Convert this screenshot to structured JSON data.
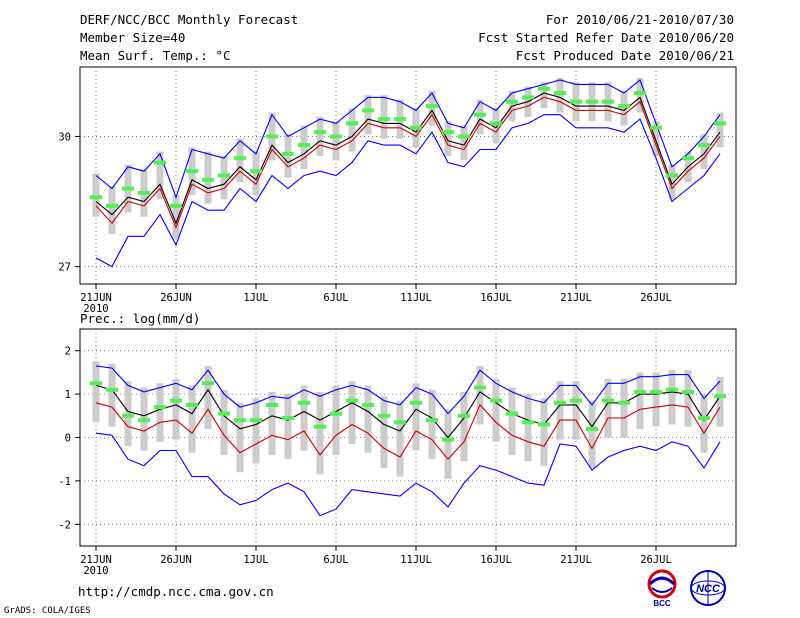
{
  "header": {
    "title": "DERF/NCC/BCC Monthly Forecast",
    "member": "Member Size=40",
    "variable": "Mean Surf. Temp.: °C",
    "period": "For 2010/06/21-2010/07/30",
    "refer": "Fcst Started Refer Date 2010/06/20",
    "produced": "Fcst Produced Date 2010/06/21"
  },
  "footer": {
    "url": "http://cmdp.ncc.cma.gov.cn",
    "grads": "GrADS: COLA/IGES",
    "logo1": "BCC",
    "logo2": "NCC"
  },
  "colors": {
    "mean": "#000000",
    "max": "#0000ff",
    "min": "#cc0000",
    "obs": "#55ee55",
    "spread": "#cccccc"
  },
  "chart_data": [
    {
      "type": "line",
      "title": "Mean Surf. Temp.: °C",
      "xlabel": "",
      "ylabel": "°C",
      "ylim": [
        26.6,
        31.6
      ],
      "yticks": [
        27,
        30
      ],
      "x_ticks": [
        "21JUN",
        "26JUN",
        "1JUL",
        "6JUL",
        "11JUL",
        "16JUL",
        "21JUL",
        "26JUL"
      ],
      "year_label": "2010",
      "days": 40,
      "series": [
        {
          "name": "mean",
          "values": [
            28.5,
            28.2,
            28.6,
            28.5,
            28.9,
            28.0,
            29.0,
            28.8,
            28.9,
            29.3,
            29.0,
            29.8,
            29.4,
            29.6,
            29.9,
            29.8,
            30.0,
            30.4,
            30.3,
            30.3,
            30.1,
            30.6,
            29.9,
            29.8,
            30.4,
            30.2,
            30.7,
            30.8,
            31.0,
            30.9,
            30.7,
            30.7,
            30.7,
            30.6,
            30.9,
            29.9,
            28.9,
            29.3,
            29.6,
            30.1
          ]
        },
        {
          "name": "max",
          "values": [
            29.1,
            28.8,
            29.3,
            29.2,
            29.6,
            28.6,
            29.7,
            29.6,
            29.5,
            29.9,
            29.6,
            30.5,
            30.0,
            30.2,
            30.4,
            30.3,
            30.6,
            30.9,
            30.9,
            30.8,
            30.6,
            31.0,
            30.3,
            30.2,
            30.8,
            30.6,
            31.0,
            31.1,
            31.2,
            31.3,
            31.2,
            31.2,
            31.2,
            31.0,
            31.3,
            30.3,
            29.3,
            29.6,
            30.0,
            30.5
          ]
        },
        {
          "name": "min",
          "values": [
            28.4,
            28.0,
            28.5,
            28.4,
            28.8,
            27.9,
            28.9,
            28.7,
            28.8,
            29.2,
            28.9,
            29.7,
            29.3,
            29.5,
            29.8,
            29.7,
            29.9,
            30.3,
            30.2,
            30.2,
            30.0,
            30.5,
            29.8,
            29.7,
            30.3,
            30.1,
            30.6,
            30.7,
            30.9,
            30.8,
            30.6,
            30.6,
            30.6,
            30.5,
            30.8,
            29.8,
            28.8,
            29.2,
            29.5,
            30.0
          ]
        },
        {
          "name": "lower",
          "values": [
            27.2,
            27.0,
            27.7,
            27.7,
            28.2,
            27.5,
            28.5,
            28.3,
            28.3,
            28.8,
            28.5,
            29.1,
            28.8,
            29.1,
            29.2,
            29.1,
            29.4,
            29.9,
            29.8,
            29.8,
            29.6,
            30.1,
            29.4,
            29.3,
            29.7,
            29.7,
            30.2,
            30.3,
            30.5,
            30.5,
            30.2,
            30.2,
            30.2,
            30.1,
            30.4,
            29.5,
            28.5,
            28.8,
            29.1,
            29.6
          ]
        },
        {
          "name": "obs",
          "values": [
            28.6,
            28.4,
            28.8,
            28.7,
            29.4,
            28.4,
            29.2,
            29.0,
            29.1,
            29.5,
            29.2,
            30.0,
            29.6,
            29.8,
            30.1,
            30.0,
            30.3,
            30.6,
            30.4,
            30.4,
            30.2,
            30.7,
            30.1,
            30.0,
            30.5,
            30.3,
            30.8,
            30.9,
            31.1,
            31.0,
            30.8,
            30.8,
            30.8,
            30.7,
            31.0,
            30.2,
            29.1,
            29.5,
            29.8,
            30.3
          ]
        }
      ]
    },
    {
      "type": "line",
      "title": "Prec.: log(mm/d)",
      "xlabel": "",
      "ylabel": "log(mm/d)",
      "ylim": [
        -2.5,
        2.5
      ],
      "yticks": [
        -2,
        -1,
        0,
        1,
        2
      ],
      "x_ticks": [
        "21JUN",
        "26JUN",
        "1JUL",
        "6JUL",
        "11JUL",
        "16JUL",
        "21JUL",
        "26JUL"
      ],
      "year_label": "2010",
      "days": 40,
      "series": [
        {
          "name": "mean",
          "values": [
            1.2,
            1.1,
            0.6,
            0.5,
            0.65,
            0.75,
            0.55,
            1.1,
            0.5,
            0.2,
            0.3,
            0.5,
            0.4,
            0.6,
            0.4,
            0.6,
            0.8,
            0.6,
            0.3,
            0.15,
            0.65,
            0.45,
            0.0,
            0.45,
            1.05,
            0.8,
            0.55,
            0.4,
            0.3,
            0.75,
            0.75,
            0.25,
            0.8,
            0.8,
            1.0,
            1.0,
            1.05,
            1.0,
            0.4,
            0.95
          ]
        },
        {
          "name": "max",
          "values": [
            1.65,
            1.6,
            1.2,
            1.05,
            1.15,
            1.25,
            1.1,
            1.55,
            1.0,
            0.7,
            0.8,
            0.95,
            0.9,
            1.1,
            0.95,
            1.1,
            1.2,
            1.1,
            0.85,
            0.75,
            1.15,
            1.0,
            0.55,
            0.95,
            1.55,
            1.25,
            1.05,
            0.9,
            0.8,
            1.2,
            1.2,
            0.75,
            1.25,
            1.25,
            1.4,
            1.4,
            1.45,
            1.45,
            0.9,
            1.3
          ]
        },
        {
          "name": "min",
          "values": [
            0.8,
            0.7,
            0.25,
            0.15,
            0.35,
            0.4,
            0.1,
            0.65,
            0.05,
            -0.35,
            -0.15,
            0.05,
            -0.05,
            0.15,
            -0.4,
            0.05,
            0.3,
            0.1,
            -0.25,
            -0.45,
            0.15,
            -0.05,
            -0.5,
            -0.1,
            0.75,
            0.35,
            0.05,
            -0.1,
            -0.2,
            0.4,
            0.4,
            -0.25,
            0.45,
            0.45,
            0.65,
            0.7,
            0.75,
            0.7,
            0.1,
            0.7
          ]
        },
        {
          "name": "lower",
          "values": [
            0.1,
            0.05,
            -0.5,
            -0.65,
            -0.3,
            -0.3,
            -0.9,
            -0.9,
            -1.3,
            -1.55,
            -1.45,
            -1.2,
            -1.05,
            -1.25,
            -1.8,
            -1.65,
            -1.2,
            -1.25,
            -1.3,
            -1.35,
            -1.05,
            -1.25,
            -1.6,
            -1.05,
            -0.65,
            -0.75,
            -0.9,
            -1.05,
            -1.1,
            -0.15,
            -0.2,
            -0.75,
            -0.45,
            -0.3,
            -0.2,
            -0.3,
            -0.1,
            -0.2,
            -0.7,
            -0.1
          ]
        },
        {
          "name": "obs",
          "values": [
            1.25,
            1.1,
            0.5,
            0.4,
            0.7,
            0.85,
            0.75,
            1.25,
            0.55,
            0.4,
            0.4,
            0.75,
            0.45,
            0.8,
            0.25,
            0.55,
            0.85,
            0.75,
            0.5,
            0.35,
            0.8,
            0.4,
            -0.05,
            0.5,
            1.15,
            0.85,
            0.55,
            0.35,
            0.3,
            0.8,
            0.85,
            0.2,
            0.85,
            0.8,
            1.05,
            1.05,
            1.1,
            1.05,
            0.45,
            0.95
          ]
        }
      ]
    }
  ]
}
